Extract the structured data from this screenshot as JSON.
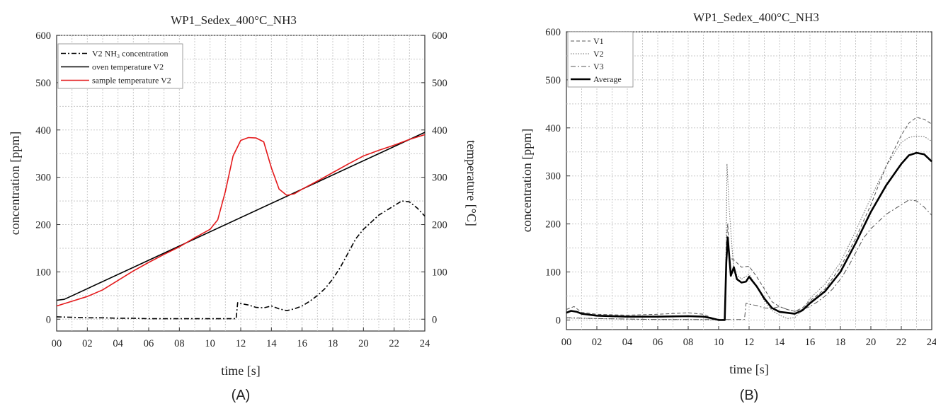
{
  "chart_data": [
    {
      "type": "line",
      "panel_label": "(A)",
      "title": "WP1_Sedex_400°C_NH3",
      "xlabel": "time [s]",
      "ylabel": "concentration [ppm]",
      "y2label": "temperature [°C]",
      "xlim": [
        0,
        24
      ],
      "ylim": [
        -25,
        600
      ],
      "y2lim": [
        -25,
        600
      ],
      "xticks": [
        "00",
        "02",
        "04",
        "06",
        "08",
        "10",
        "12",
        "14",
        "16",
        "18",
        "20",
        "22",
        "24"
      ],
      "yticks": [
        "0",
        "100",
        "200",
        "300",
        "400",
        "500",
        "600"
      ],
      "y2ticks": [
        "0",
        "100",
        "200",
        "300",
        "400",
        "500",
        "600"
      ],
      "grid": true,
      "legend_position": "top-left",
      "series": [
        {
          "name": "V2 NH₃ concentration",
          "axis": "left",
          "color": "#000000",
          "style": "dashdot",
          "points": [
            [
              0,
              5
            ],
            [
              1,
              4
            ],
            [
              2,
              3
            ],
            [
              3,
              3
            ],
            [
              4,
              2
            ],
            [
              5,
              2
            ],
            [
              6,
              1
            ],
            [
              7,
              1
            ],
            [
              8,
              1
            ],
            [
              9,
              1
            ],
            [
              10,
              1
            ],
            [
              11,
              1
            ],
            [
              11.7,
              1
            ],
            [
              11.8,
              35
            ],
            [
              12,
              33
            ],
            [
              12.5,
              30
            ],
            [
              13,
              25
            ],
            [
              13.5,
              24
            ],
            [
              14,
              28
            ],
            [
              14.5,
              22
            ],
            [
              15,
              18
            ],
            [
              15.5,
              22
            ],
            [
              16,
              28
            ],
            [
              16.5,
              38
            ],
            [
              17,
              50
            ],
            [
              17.5,
              65
            ],
            [
              18,
              85
            ],
            [
              18.5,
              110
            ],
            [
              19,
              140
            ],
            [
              19.5,
              170
            ],
            [
              20,
              190
            ],
            [
              20.5,
              205
            ],
            [
              21,
              220
            ],
            [
              21.5,
              230
            ],
            [
              22,
              240
            ],
            [
              22.5,
              250
            ],
            [
              23,
              248
            ],
            [
              23.5,
              235
            ],
            [
              24,
              218
            ]
          ]
        },
        {
          "name": "oven temperature V2",
          "axis": "right",
          "color": "#000000",
          "style": "solid",
          "points": [
            [
              0,
              40
            ],
            [
              0.5,
              42
            ],
            [
              24,
              395
            ]
          ]
        },
        {
          "name": "sample temperature V2",
          "axis": "right",
          "color": "#e41a1c",
          "style": "solid",
          "points": [
            [
              0,
              28
            ],
            [
              1,
              38
            ],
            [
              2,
              48
            ],
            [
              3,
              62
            ],
            [
              4,
              82
            ],
            [
              5,
              102
            ],
            [
              6,
              120
            ],
            [
              7,
              137
            ],
            [
              8,
              153
            ],
            [
              9,
              172
            ],
            [
              10,
              190
            ],
            [
              10.5,
              210
            ],
            [
              11,
              270
            ],
            [
              11.5,
              345
            ],
            [
              12,
              378
            ],
            [
              12.5,
              384
            ],
            [
              13,
              383
            ],
            [
              13.5,
              375
            ],
            [
              14,
              320
            ],
            [
              14.5,
              275
            ],
            [
              15,
              262
            ],
            [
              15.5,
              265
            ],
            [
              16,
              275
            ],
            [
              17,
              292
            ],
            [
              18,
              310
            ],
            [
              19,
              328
            ],
            [
              20,
              345
            ],
            [
              21,
              357
            ],
            [
              22,
              368
            ],
            [
              23,
              380
            ],
            [
              24,
              390
            ]
          ]
        }
      ]
    },
    {
      "type": "line",
      "panel_label": "(B)",
      "title": "WP1_Sedex_400°C_NH3",
      "xlabel": "time [s]",
      "ylabel": "concentration [ppm]",
      "xlim": [
        0,
        24
      ],
      "ylim": [
        -20,
        600
      ],
      "xticks": [
        "00",
        "02",
        "04",
        "06",
        "08",
        "10",
        "12",
        "14",
        "16",
        "18",
        "20",
        "22",
        "24"
      ],
      "yticks": [
        "0",
        "100",
        "200",
        "300",
        "400",
        "500",
        "600"
      ],
      "grid": true,
      "legend_position": "top-left",
      "series": [
        {
          "name": "V1",
          "color": "#555555",
          "style": "dashed",
          "width": 1,
          "points": [
            [
              0,
              22
            ],
            [
              0.5,
              28
            ],
            [
              1,
              16
            ],
            [
              2,
              12
            ],
            [
              4,
              10
            ],
            [
              6,
              12
            ],
            [
              8,
              15
            ],
            [
              9,
              12
            ],
            [
              9.5,
              5
            ],
            [
              10,
              0
            ],
            [
              10.4,
              0
            ],
            [
              10.5,
              160
            ],
            [
              10.6,
              200
            ],
            [
              10.7,
              130
            ],
            [
              11,
              125
            ],
            [
              11.5,
              110
            ],
            [
              12,
              112
            ],
            [
              12.5,
              90
            ],
            [
              13,
              65
            ],
            [
              13.5,
              38
            ],
            [
              14,
              28
            ],
            [
              14.5,
              22
            ],
            [
              15,
              18
            ],
            [
              15.5,
              25
            ],
            [
              16,
              40
            ],
            [
              17,
              65
            ],
            [
              18,
              110
            ],
            [
              19,
              170
            ],
            [
              20,
              240
            ],
            [
              21,
              320
            ],
            [
              22,
              385
            ],
            [
              22.5,
              410
            ],
            [
              23,
              422
            ],
            [
              23.5,
              418
            ],
            [
              24,
              408
            ]
          ]
        },
        {
          "name": "V2",
          "color": "#666666",
          "style": "dotted",
          "width": 1,
          "points": [
            [
              0,
              4
            ],
            [
              2,
              3
            ],
            [
              4,
              2
            ],
            [
              6,
              1
            ],
            [
              8,
              1
            ],
            [
              10,
              0
            ],
            [
              10.4,
              0
            ],
            [
              10.5,
              180
            ],
            [
              10.55,
              325
            ],
            [
              10.7,
              230
            ],
            [
              11,
              100
            ],
            [
              11.5,
              85
            ],
            [
              12,
              95
            ],
            [
              12.5,
              70
            ],
            [
              13,
              40
            ],
            [
              13.5,
              20
            ],
            [
              14,
              10
            ],
            [
              14.5,
              3
            ],
            [
              15,
              5
            ],
            [
              15.5,
              20
            ],
            [
              16,
              45
            ],
            [
              17,
              75
            ],
            [
              18,
              120
            ],
            [
              19,
              185
            ],
            [
              20,
              255
            ],
            [
              21,
              320
            ],
            [
              22,
              370
            ],
            [
              22.5,
              380
            ],
            [
              23,
              383
            ],
            [
              23.5,
              382
            ],
            [
              24,
              372
            ]
          ]
        },
        {
          "name": "V3",
          "color": "#555555",
          "style": "dashdot",
          "width": 1,
          "points": [
            [
              0,
              5
            ],
            [
              2,
              3
            ],
            [
              4,
              2
            ],
            [
              6,
              1
            ],
            [
              8,
              1
            ],
            [
              10,
              1
            ],
            [
              11,
              1
            ],
            [
              11.7,
              1
            ],
            [
              11.8,
              35
            ],
            [
              12,
              33
            ],
            [
              12.5,
              30
            ],
            [
              13,
              25
            ],
            [
              13.5,
              24
            ],
            [
              14,
              28
            ],
            [
              14.5,
              22
            ],
            [
              15,
              18
            ],
            [
              15.5,
              22
            ],
            [
              16,
              28
            ],
            [
              16.5,
              38
            ],
            [
              17,
              50
            ],
            [
              17.5,
              65
            ],
            [
              18,
              85
            ],
            [
              18.5,
              110
            ],
            [
              19,
              140
            ],
            [
              19.5,
              170
            ],
            [
              20,
              190
            ],
            [
              20.5,
              205
            ],
            [
              21,
              220
            ],
            [
              21.5,
              230
            ],
            [
              22,
              240
            ],
            [
              22.5,
              250
            ],
            [
              23,
              248
            ],
            [
              23.5,
              235
            ],
            [
              24,
              218
            ]
          ]
        },
        {
          "name": "Average",
          "color": "#000000",
          "style": "solid",
          "width": 2.6,
          "points": [
            [
              0,
              15
            ],
            [
              0.3,
              19
            ],
            [
              0.7,
              17
            ],
            [
              1,
              13
            ],
            [
              2,
              9
            ],
            [
              4,
              7
            ],
            [
              6,
              7
            ],
            [
              8,
              8
            ],
            [
              9,
              7
            ],
            [
              9.5,
              4
            ],
            [
              10,
              0
            ],
            [
              10.4,
              0
            ],
            [
              10.5,
              120
            ],
            [
              10.6,
              172
            ],
            [
              10.8,
              92
            ],
            [
              11,
              110
            ],
            [
              11.2,
              85
            ],
            [
              11.5,
              78
            ],
            [
              11.8,
              80
            ],
            [
              12,
              90
            ],
            [
              12.5,
              70
            ],
            [
              13,
              45
            ],
            [
              13.5,
              25
            ],
            [
              14,
              17
            ],
            [
              14.5,
              15
            ],
            [
              15,
              13
            ],
            [
              15.5,
              20
            ],
            [
              16,
              35
            ],
            [
              17,
              60
            ],
            [
              18,
              100
            ],
            [
              19,
              160
            ],
            [
              20,
              225
            ],
            [
              21,
              280
            ],
            [
              22,
              325
            ],
            [
              22.5,
              343
            ],
            [
              23,
              348
            ],
            [
              23.5,
              345
            ],
            [
              24,
              330
            ]
          ]
        }
      ]
    }
  ]
}
